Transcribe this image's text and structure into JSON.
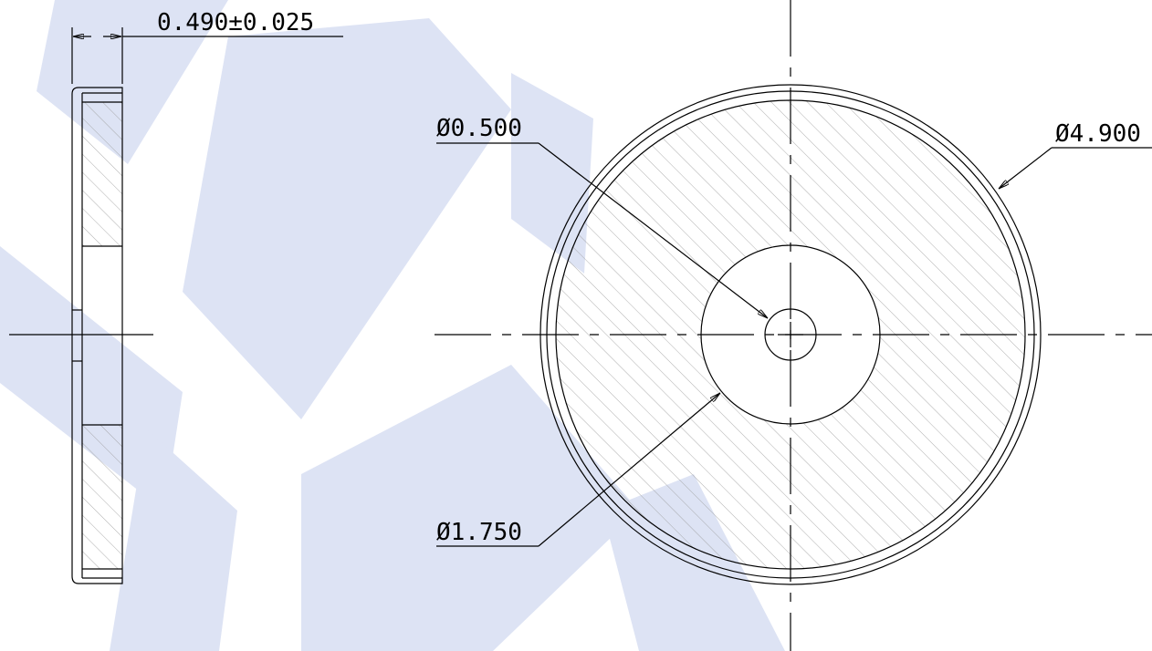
{
  "drawing": {
    "dimensions": {
      "thickness": "0.490±0.025",
      "hole_diameter": "Ø0.500",
      "hub_diameter": "Ø1.750",
      "outer_diameter": "Ø4.900"
    },
    "colors": {
      "line": "#000000",
      "hatch": "#9a9a9a",
      "watermark": "#dde3f4",
      "background": "#ffffff"
    }
  }
}
